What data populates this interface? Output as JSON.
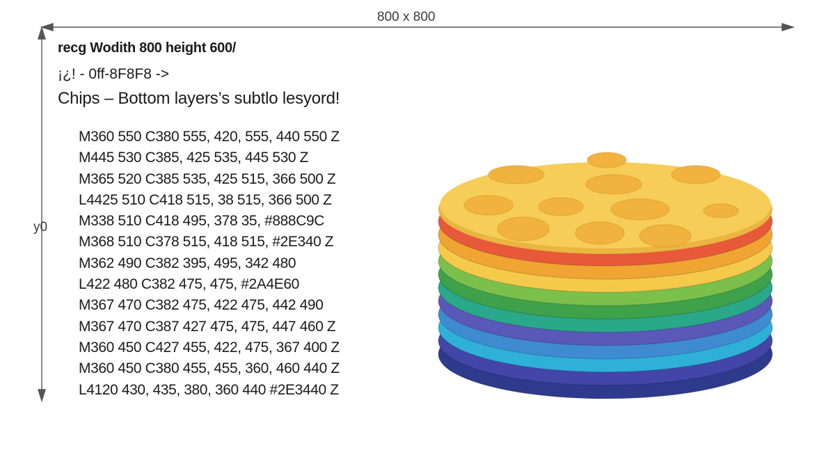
{
  "dimension_labels": {
    "top": "800 x 800",
    "left": "y0"
  },
  "headings": {
    "line1": "recg Wodith 800 height 600/",
    "line2": "¡¿! - 0ff-8F8F8 ->",
    "line3": "Chips – Bottom layers’s subtlo lesyord!"
  },
  "path_lines": [
    "M360 550 C380 555, 420, 555, 440 550 Z",
    "M445 530 C385, 425 535, 445 530 Z",
    "M365 520 C385 535, 425 515, 366 500 Z",
    "L4425 510 C418 515, 38 515, 366 500 Z",
    "M338 510 C418 495, 378 35, #888C9C",
    "M368 510 C378 515, 418 515,  #2E340 Z",
    "M362 490 C382 395, 495, 342 480",
    "L422 480 C382 475, 475, #2A4E60",
    "M367 470 C382 475, 422 475, 442 490",
    "M367 470 C387 427 475, 475, 447 460 Z",
    "M360 450 C427 455, 422, 475, 367 400 Z",
    "M360 450 C380 455, 455, 360, 460 440 Z",
    "L4120 430, 435, 380, 360 440 #2E3440 Z"
  ],
  "colors": {
    "axis_line": "#555555",
    "top_chip": "#F6CD58",
    "spot": "#F1B23E",
    "bands": [
      "#E8593A",
      "#F0A532",
      "#F5C94A",
      "#7CC04C",
      "#3FA24A",
      "#2AA88A",
      "#5A58B8",
      "#3F8BD2",
      "#2FB0D8",
      "#4346A8",
      "#2E3A8C"
    ]
  },
  "graphic": {
    "name": "stacked-chips",
    "spots": 11
  }
}
